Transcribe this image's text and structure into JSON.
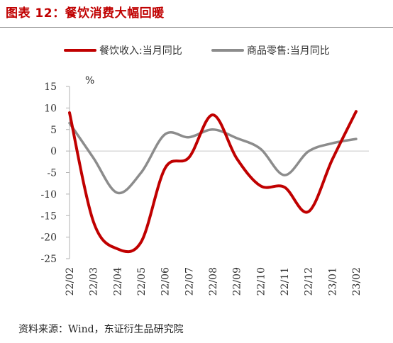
{
  "figure_title": "图表 12：餐饮消费大幅回暖",
  "source_note": "资料来源：Wind，东证衍生品研究院",
  "colors": {
    "title": "#c00000",
    "series_1": "#c00000",
    "series_2": "#8c8c8c"
  },
  "chart_data": {
    "type": "line",
    "title": "",
    "unit_label": "%",
    "xlabel": "",
    "ylabel": "",
    "ylim": [
      -25,
      15
    ],
    "yticks": [
      15,
      10,
      5,
      0,
      -5,
      -10,
      -15,
      -20,
      -25
    ],
    "categories": [
      "22/02",
      "22/03",
      "22/04",
      "22/05",
      "22/06",
      "22/07",
      "22/08",
      "22/09",
      "22/10",
      "22/11",
      "22/12",
      "23/01",
      "23/02"
    ],
    "legend_position": "top",
    "grid": false,
    "series": [
      {
        "name": "餐饮收入:当月同比",
        "color": "#c00000",
        "values": [
          8.9,
          -16.4,
          -22.7,
          -21.1,
          -4.0,
          -1.5,
          8.4,
          -1.7,
          -8.1,
          -8.4,
          -14.1,
          -2.0,
          9.2
        ]
      },
      {
        "name": "商品零售:当月同比",
        "color": "#8c8c8c",
        "values": [
          6.5,
          -1.6,
          -9.7,
          -5.0,
          3.9,
          3.2,
          5.0,
          3.0,
          0.5,
          -5.6,
          -0.1,
          1.8,
          2.8
        ]
      }
    ]
  }
}
